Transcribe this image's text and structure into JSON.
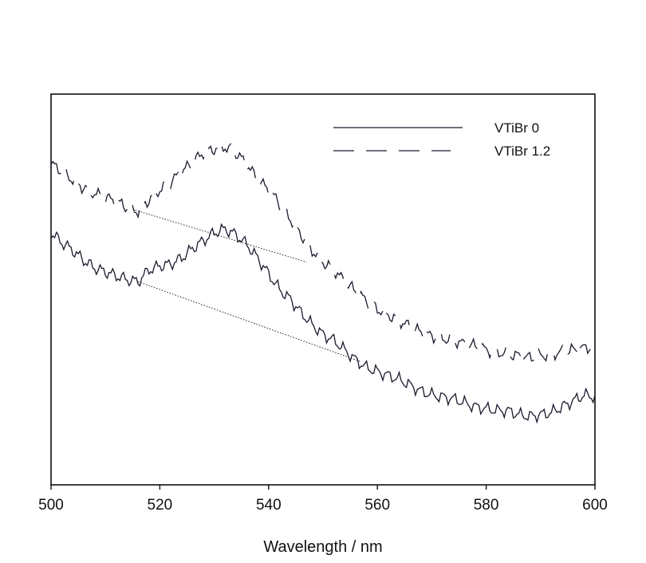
{
  "chart_data": {
    "type": "line",
    "title": "",
    "xlabel": "Wavelength / nm",
    "ylabel": "",
    "xlim": [
      500,
      600
    ],
    "ylim": [
      0,
      1
    ],
    "x_ticks": [
      500,
      520,
      540,
      560,
      580,
      600
    ],
    "y_ticks": [],
    "grid": false,
    "legend_position": "top-right",
    "series": [
      {
        "name": "VTiBr 0",
        "style": "solid",
        "color": "#1a1a2e",
        "x": [
          500,
          502,
          504,
          506,
          508,
          510,
          512,
          514,
          516,
          518,
          520,
          522,
          524,
          526,
          528,
          530,
          532,
          534,
          536,
          538,
          540,
          542,
          544,
          546,
          548,
          550,
          552,
          554,
          556,
          558,
          560,
          562,
          564,
          566,
          568,
          570,
          572,
          574,
          576,
          578,
          580,
          582,
          584,
          586,
          588,
          590,
          592,
          594,
          596,
          598,
          600
        ],
        "y": [
          0.645,
          0.62,
          0.6,
          0.575,
          0.555,
          0.545,
          0.535,
          0.525,
          0.52,
          0.55,
          0.56,
          0.565,
          0.58,
          0.605,
          0.625,
          0.645,
          0.655,
          0.64,
          0.615,
          0.58,
          0.54,
          0.5,
          0.475,
          0.44,
          0.41,
          0.385,
          0.37,
          0.345,
          0.32,
          0.3,
          0.29,
          0.28,
          0.27,
          0.255,
          0.24,
          0.23,
          0.225,
          0.22,
          0.21,
          0.2,
          0.195,
          0.19,
          0.19,
          0.18,
          0.175,
          0.18,
          0.185,
          0.2,
          0.215,
          0.23,
          0.225
        ]
      },
      {
        "name": "VTiBr 1.2",
        "style": "dashed",
        "color": "#1a1a2e",
        "x": [
          500,
          502,
          504,
          506,
          508,
          510,
          512,
          514,
          516,
          518,
          520,
          522,
          524,
          526,
          528,
          530,
          532,
          534,
          536,
          538,
          540,
          542,
          544,
          546,
          548,
          550,
          552,
          554,
          556,
          558,
          560,
          562,
          564,
          566,
          568,
          570,
          572,
          574,
          576,
          578,
          580,
          582,
          584,
          586,
          588,
          590,
          592,
          594,
          596,
          598,
          600
        ],
        "y": [
          0.82,
          0.805,
          0.78,
          0.76,
          0.745,
          0.735,
          0.725,
          0.71,
          0.7,
          0.73,
          0.755,
          0.775,
          0.8,
          0.825,
          0.85,
          0.86,
          0.865,
          0.85,
          0.82,
          0.78,
          0.755,
          0.72,
          0.68,
          0.64,
          0.6,
          0.57,
          0.55,
          0.52,
          0.495,
          0.47,
          0.45,
          0.435,
          0.42,
          0.405,
          0.39,
          0.38,
          0.375,
          0.37,
          0.36,
          0.355,
          0.345,
          0.34,
          0.335,
          0.33,
          0.325,
          0.33,
          0.335,
          0.34,
          0.345,
          0.35,
          0.355
        ]
      }
    ],
    "annotations": [
      {
        "type": "dotted-line",
        "x1": 516,
        "y1": 0.52,
        "x2": 557,
        "y2": 0.315
      },
      {
        "type": "dotted-line",
        "x1": 515,
        "y1": 0.705,
        "x2": 547,
        "y2": 0.57
      }
    ]
  }
}
